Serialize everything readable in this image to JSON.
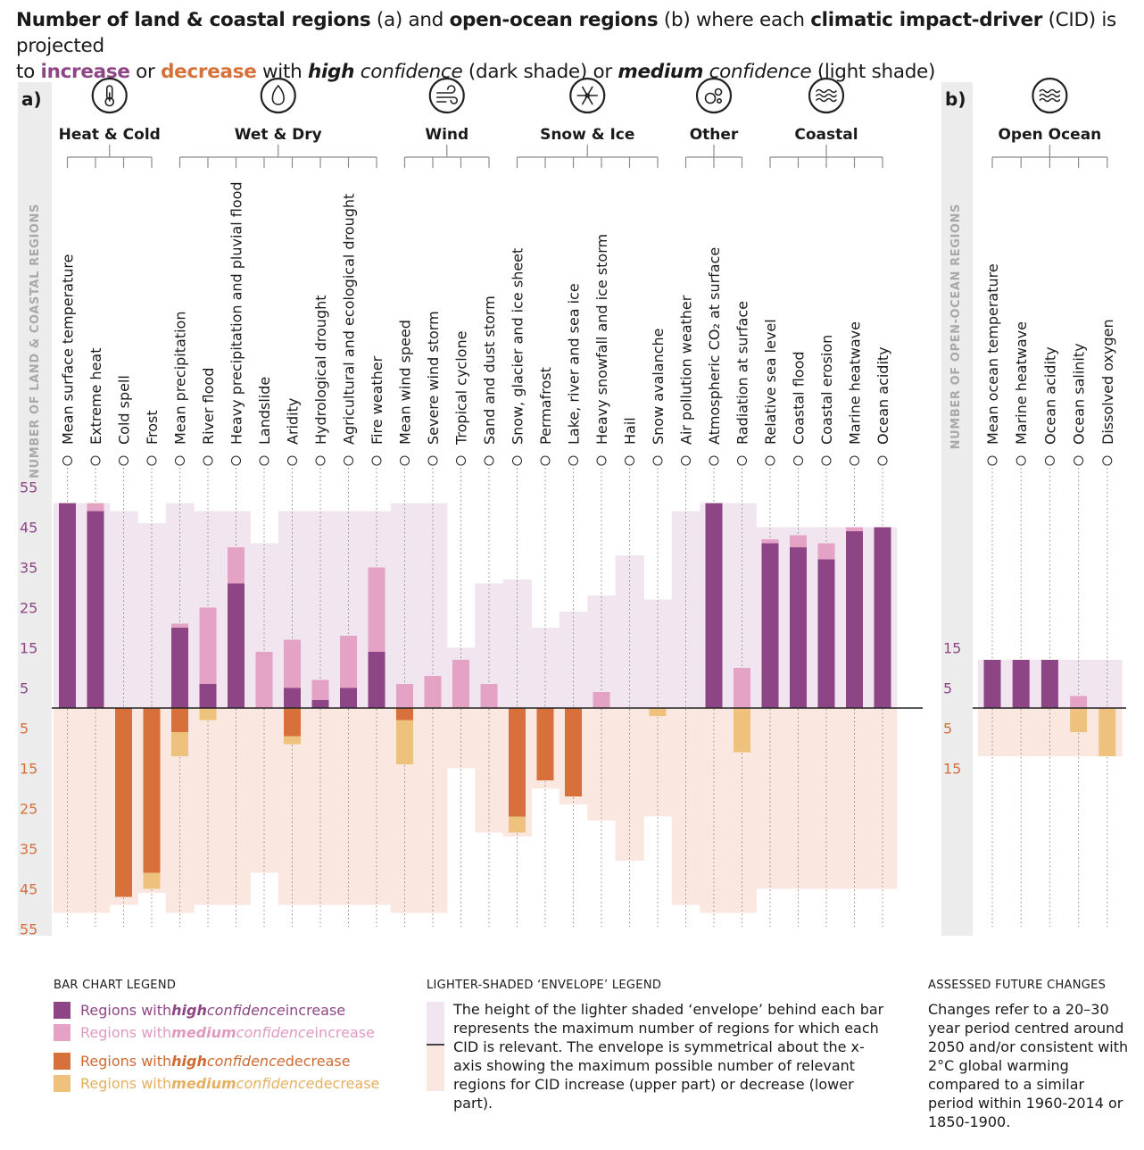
{
  "title": {
    "p1": "Number of land & coastal regions",
    "p2": " (a) and ",
    "p3": "open-ocean regions",
    "p4": " (b) where each ",
    "p5": "climatic impact-driver",
    "p6": " (CID) is projected",
    "p7": "to ",
    "p8": "increase",
    "p9": " or ",
    "p10": "decrease",
    "p11": " with ",
    "p12": "high",
    "p13": " confidence",
    "p14": " (dark shade) or ",
    "p15": "medium",
    "p16": " confidence",
    "p17": " (light shade)"
  },
  "panels": {
    "a_label": "a)",
    "b_label": "b)",
    "a_ylabel": "NUMBER OF LAND & COASTAL REGIONS",
    "b_ylabel": "NUMBER OF OPEN-OCEAN REGIONS"
  },
  "icons": {
    "heat_cold": "thermometer-icon",
    "wet_dry": "water-drop-icon",
    "wind": "wind-icon",
    "snow_ice": "snowflake-icon",
    "other": "bubbles-icon",
    "coastal": "waves-icon",
    "open_ocean": "ocean-waves-icon"
  },
  "colors": {
    "high_increase": "#8e4585",
    "medium_increase": "#e4a2c4",
    "high_decrease": "#d7703a",
    "medium_decrease": "#eec27d",
    "envelope_increase": "#f1e5f0",
    "envelope_decrease": "#fae8e0",
    "axis_panel": "#ececec"
  },
  "chart_data": [
    {
      "panel": "a",
      "type": "bar",
      "ylabel": "NUMBER OF LAND & COASTAL REGIONS",
      "ylim": [
        -55,
        55
      ],
      "yticks_up": [
        "55",
        "45",
        "35",
        "25",
        "15",
        "5"
      ],
      "yticks_down": [
        "5",
        "15",
        "25",
        "35",
        "45",
        "55"
      ],
      "groups": [
        {
          "name": "Heat & Cold",
          "count": 4
        },
        {
          "name": "Wet & Dry",
          "count": 8
        },
        {
          "name": "Wind",
          "count": 4
        },
        {
          "name": "Snow & Ice",
          "count": 6
        },
        {
          "name": "Other",
          "count": 3
        },
        {
          "name": "Coastal",
          "count": 5
        }
      ],
      "categories": [
        "Mean surface temperature",
        "Extreme heat",
        "Cold spell",
        "Frost",
        "Mean precipitation",
        "River flood",
        "Heavy precipitation and pluvial flood",
        "Landslide",
        "Aridity",
        "Hydrological drought",
        "Agricultural and ecological drought",
        "Fire weather",
        "Mean wind speed",
        "Severe wind storm",
        "Tropical cyclone",
        "Sand and dust storm",
        "Snow, glacier and ice sheet",
        "Permafrost",
        "Lake, river and sea ice",
        "Heavy snowfall and ice storm",
        "Hail",
        "Snow avalanche",
        "Air pollution weather",
        "Atmospheric CO₂ at surface",
        "Radiation at surface",
        "Relative sea level",
        "Coastal flood",
        "Coastal erosion",
        "Marine heatwave",
        "Ocean acidity"
      ],
      "envelope_up": [
        51,
        51,
        49,
        46,
        51,
        49,
        49,
        41,
        49,
        49,
        49,
        49,
        51,
        51,
        15,
        31,
        32,
        20,
        24,
        28,
        38,
        27,
        49,
        51,
        51,
        45,
        45,
        45,
        45,
        45
      ],
      "envelope_down": [
        51,
        51,
        49,
        46,
        51,
        49,
        49,
        41,
        49,
        49,
        49,
        49,
        51,
        51,
        15,
        31,
        32,
        20,
        24,
        28,
        38,
        27,
        49,
        51,
        51,
        45,
        45,
        45,
        45,
        45
      ],
      "high_increase": [
        51,
        49,
        0,
        0,
        20,
        6,
        31,
        0,
        5,
        2,
        5,
        14,
        0,
        0,
        0,
        0,
        0,
        0,
        0,
        0,
        0,
        0,
        0,
        51,
        0,
        41,
        40,
        37,
        44,
        45
      ],
      "medium_increase": [
        0,
        2,
        0,
        0,
        1,
        19,
        9,
        14,
        12,
        5,
        13,
        21,
        6,
        8,
        12,
        6,
        0,
        0,
        0,
        4,
        0,
        0,
        0,
        0,
        10,
        1,
        3,
        4,
        1,
        0
      ],
      "high_decrease": [
        0,
        0,
        47,
        41,
        6,
        0,
        0,
        0,
        7,
        0,
        0,
        0,
        3,
        0,
        0,
        0,
        27,
        18,
        22,
        0,
        0,
        0,
        0,
        0,
        0,
        0,
        0,
        0,
        0,
        0
      ],
      "medium_decrease": [
        0,
        0,
        0,
        4,
        6,
        3,
        0,
        0,
        2,
        0,
        0,
        0,
        11,
        0,
        0,
        0,
        4,
        0,
        0,
        0,
        0,
        2,
        0,
        0,
        11,
        0,
        0,
        0,
        0,
        0
      ]
    },
    {
      "panel": "b",
      "type": "bar",
      "ylabel": "NUMBER OF OPEN-OCEAN REGIONS",
      "ylim": [
        -15,
        15
      ],
      "yticks_up": [
        "15",
        "5"
      ],
      "yticks_down": [
        "5",
        "15"
      ],
      "groups": [
        {
          "name": "Open Ocean",
          "count": 5
        }
      ],
      "categories": [
        "Mean ocean temperature",
        "Marine heatwave",
        "Ocean acidity",
        "Ocean salinity",
        "Dissolved oxygen"
      ],
      "envelope_up": [
        12,
        12,
        12,
        12,
        12
      ],
      "envelope_down": [
        12,
        12,
        12,
        12,
        12
      ],
      "high_increase": [
        12,
        12,
        12,
        0,
        0
      ],
      "medium_increase": [
        0,
        0,
        0,
        3,
        0
      ],
      "high_decrease": [
        0,
        0,
        0,
        0,
        0
      ],
      "medium_decrease": [
        0,
        0,
        0,
        6,
        12
      ]
    }
  ],
  "legend": {
    "bar_title": "BAR CHART LEGEND",
    "hi_inc": {
      "pre": "Regions with ",
      "conf": "high",
      "mid": " confidence",
      "post": " increase"
    },
    "md_inc": {
      "pre": "Regions with ",
      "conf": "medium",
      "mid": " confidence",
      "post": " increase"
    },
    "hi_dec": {
      "pre": "Regions with ",
      "conf": "high",
      "mid": " confidence",
      "post": " decrease"
    },
    "md_dec": {
      "pre": "Regions with ",
      "conf": "medium",
      "mid": " confidence",
      "post": " decrease"
    },
    "env_title": "LIGHTER-SHADED ‘ENVELOPE’ LEGEND",
    "env_text": "The height of the lighter shaded ‘envelope’ behind each bar represents the maximum number of regions for which each CID is relevant. The envelope is symmetrical about the x-axis showing the maximum possible number of relevant regions for CID increase (upper part) or decrease (lower part).",
    "assess_title": "ASSESSED FUTURE CHANGES",
    "assess_text": "Changes refer to a 20–30 year period centred around 2050 and/or consistent with 2°C global warming compared to a similar period within 1960-2014 or 1850-1900."
  }
}
